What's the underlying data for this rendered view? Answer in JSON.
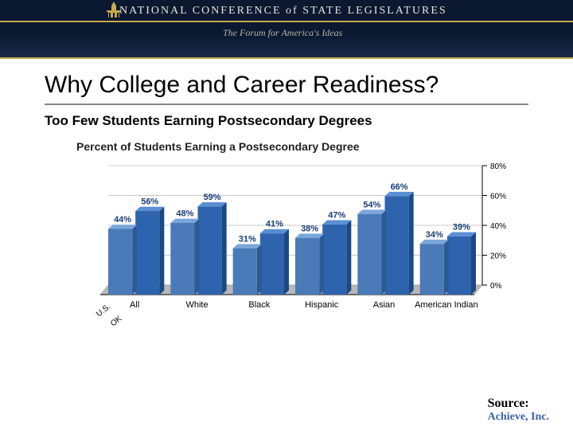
{
  "header": {
    "org_name": "NATIONAL CONFERENCE of STATE LEGISLATURES",
    "tagline": "The Forum for America's Ideas",
    "bg_color": "#0a1830",
    "divider_color": "#c9a94d"
  },
  "title": "Why College and Career Readiness?",
  "subtitle": "Too Few Students Earning Postsecondary Degrees",
  "chart": {
    "type": "bar",
    "title": "Percent of Students Earning a Postsecondary Degree",
    "categories": [
      "All",
      "White",
      "Black",
      "Hispanic",
      "Asian",
      "American Indian"
    ],
    "series": [
      {
        "label": "U.S.",
        "color_top": "#7aa6d9",
        "color_front": "#4a7ab8",
        "color_side": "#2d5a96",
        "values": [
          44,
          48,
          31,
          38,
          54,
          34
        ]
      },
      {
        "label": "OK",
        "color_top": "#5a8fd4",
        "color_front": "#2e64ae",
        "color_side": "#1c4884",
        "values": [
          56,
          59,
          41,
          47,
          66,
          39
        ]
      }
    ],
    "value_label_color": "#1a3e7a",
    "value_label_fontsize": 11,
    "value_label_weight": "bold",
    "ylim": [
      0,
      80
    ],
    "ytick_step": 20,
    "yticks": [
      0,
      20,
      40,
      60,
      80
    ],
    "ytick_labels": [
      "0%",
      "20%",
      "40%",
      "60%",
      "80%"
    ],
    "axis_color": "#000000",
    "floor_color": "#b8b8b8",
    "grid_color": "#c8c8c8",
    "background_color": "#ffffff",
    "category_fontsize": 11,
    "axis_fontsize": 10
  },
  "source": {
    "label": "Source:",
    "name": "Achieve, Inc."
  }
}
